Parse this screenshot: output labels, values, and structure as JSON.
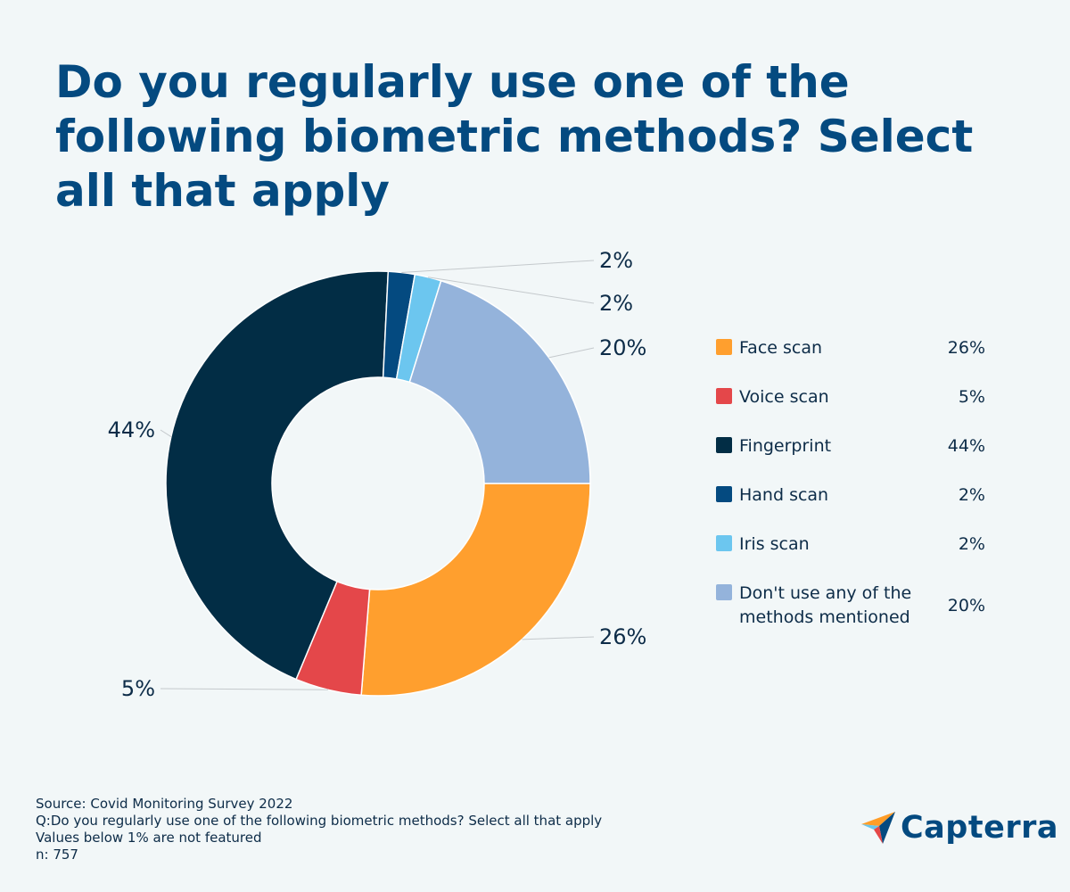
{
  "title": "Do you regularly use one of the following biometric methods? Select all that apply",
  "chart_data": {
    "type": "pie",
    "donut": true,
    "title": "Do you regularly use one of the following biometric methods? Select all that apply",
    "categories": [
      "Face scan",
      "Voice scan",
      "Fingerprint",
      "Hand scan",
      "Iris scan",
      "Don't use any of the methods mentioned"
    ],
    "values": [
      26,
      5,
      44,
      2,
      2,
      20
    ],
    "labels": [
      "26%",
      "5%",
      "44%",
      "2%",
      "2%",
      "20%"
    ],
    "colors": [
      "#ff9f2e",
      "#e4474a",
      "#022d45",
      "#044a80",
      "#6cc6ef",
      "#94b3db"
    ],
    "legend_position": "right"
  },
  "legend": [
    {
      "label": "Face scan",
      "value": "26%",
      "color": "#ff9f2e"
    },
    {
      "label": "Voice scan",
      "value": "5%",
      "color": "#e4474a"
    },
    {
      "label": "Fingerprint",
      "value": "44%",
      "color": "#022d45"
    },
    {
      "label": "Hand scan",
      "value": "2%",
      "color": "#044a80"
    },
    {
      "label": "Iris scan",
      "value": "2%",
      "color": "#6cc6ef"
    },
    {
      "label": "Don't use any of the methods mentioned",
      "value": "20%",
      "color": "#94b3db"
    }
  ],
  "footnotes": {
    "source": "Source: Covid Monitoring Survey 2022",
    "question": "Q:Do you regularly use one of the following biometric methods? Select all that apply",
    "note": "Values below 1% are not featured",
    "n": "n: 757"
  },
  "logo": {
    "text": "Capterra",
    "icon": "capterra-arrow-logo"
  }
}
